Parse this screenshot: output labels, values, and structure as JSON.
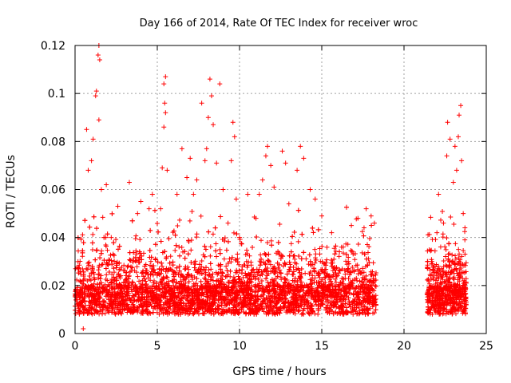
{
  "chart_data": {
    "type": "scatter",
    "title": "Day 166 of 2014, Rate Of TEC Index for receiver wroc",
    "xlabel": "GPS time / hours",
    "ylabel": "ROTI / TECUs",
    "xlim": [
      0,
      25
    ],
    "ylim": [
      0,
      0.12
    ],
    "grid": true,
    "legend": "none",
    "marker": "+",
    "color": "#ff0000",
    "x_ticks": [
      {
        "value": 0,
        "label": "0"
      },
      {
        "value": 5,
        "label": "5"
      },
      {
        "value": 10,
        "label": "10"
      },
      {
        "value": 15,
        "label": "15"
      },
      {
        "value": 20,
        "label": "20"
      },
      {
        "value": 25,
        "label": "25"
      }
    ],
    "y_ticks": [
      {
        "value": 0,
        "label": "0"
      },
      {
        "value": 0.02,
        "label": "0.02"
      },
      {
        "value": 0.04,
        "label": "0.04"
      },
      {
        "value": 0.06,
        "label": "0.06"
      },
      {
        "value": 0.08,
        "label": "0.08"
      },
      {
        "value": 0.1,
        "label": "0.1"
      },
      {
        "value": 0.12,
        "label": "0.12"
      }
    ],
    "series": [
      {
        "name": "ROTI",
        "coverage": [
          [
            0,
            18.3
          ],
          [
            21.4,
            23.8
          ]
        ],
        "points": [
          [
            0.3,
            0.022
          ],
          [
            0.5,
            0.002
          ],
          [
            0.7,
            0.085
          ],
          [
            0.8,
            0.068
          ],
          [
            1.0,
            0.072
          ],
          [
            1.1,
            0.081
          ],
          [
            1.25,
            0.099
          ],
          [
            1.3,
            0.101
          ],
          [
            1.4,
            0.116
          ],
          [
            1.45,
            0.12
          ],
          [
            1.5,
            0.114
          ],
          [
            1.45,
            0.089
          ],
          [
            1.6,
            0.06
          ],
          [
            1.9,
            0.062
          ],
          [
            2.2,
            0.04
          ],
          [
            2.6,
            0.053
          ],
          [
            3.3,
            0.063
          ],
          [
            3.8,
            0.05
          ],
          [
            4.0,
            0.055
          ],
          [
            4.5,
            0.052
          ],
          [
            4.7,
            0.058
          ],
          [
            5.2,
            0.052
          ],
          [
            5.3,
            0.069
          ],
          [
            5.4,
            0.104
          ],
          [
            5.5,
            0.107
          ],
          [
            5.45,
            0.096
          ],
          [
            5.4,
            0.086
          ],
          [
            5.5,
            0.092
          ],
          [
            5.6,
            0.068
          ],
          [
            6.2,
            0.058
          ],
          [
            6.5,
            0.077
          ],
          [
            6.8,
            0.065
          ],
          [
            7.0,
            0.073
          ],
          [
            7.2,
            0.058
          ],
          [
            7.4,
            0.064
          ],
          [
            7.7,
            0.096
          ],
          [
            7.9,
            0.072
          ],
          [
            8.0,
            0.077
          ],
          [
            8.1,
            0.09
          ],
          [
            8.2,
            0.106
          ],
          [
            8.3,
            0.099
          ],
          [
            8.4,
            0.087
          ],
          [
            8.6,
            0.071
          ],
          [
            8.8,
            0.104
          ],
          [
            9.0,
            0.06
          ],
          [
            9.3,
            0.046
          ],
          [
            9.5,
            0.072
          ],
          [
            9.6,
            0.088
          ],
          [
            9.7,
            0.082
          ],
          [
            9.8,
            0.056
          ],
          [
            10.0,
            0.04
          ],
          [
            10.5,
            0.058
          ],
          [
            11.0,
            0.048
          ],
          [
            11.2,
            0.058
          ],
          [
            11.4,
            0.064
          ],
          [
            11.6,
            0.074
          ],
          [
            11.7,
            0.078
          ],
          [
            11.9,
            0.07
          ],
          [
            12.1,
            0.061
          ],
          [
            12.6,
            0.076
          ],
          [
            12.8,
            0.071
          ],
          [
            13.0,
            0.054
          ],
          [
            13.5,
            0.068
          ],
          [
            13.7,
            0.078
          ],
          [
            13.9,
            0.073
          ],
          [
            14.3,
            0.06
          ],
          [
            14.6,
            0.056
          ],
          [
            15.0,
            0.049
          ],
          [
            15.6,
            0.042
          ],
          [
            16.2,
            0.036
          ],
          [
            16.8,
            0.045
          ],
          [
            17.2,
            0.048
          ],
          [
            17.7,
            0.052
          ],
          [
            18.0,
            0.049
          ],
          [
            18.2,
            0.046
          ],
          [
            21.7,
            0.03
          ],
          [
            22.0,
            0.042
          ],
          [
            22.1,
            0.058
          ],
          [
            22.4,
            0.046
          ],
          [
            22.6,
            0.074
          ],
          [
            22.65,
            0.088
          ],
          [
            22.8,
            0.081
          ],
          [
            23.0,
            0.063
          ],
          [
            23.1,
            0.078
          ],
          [
            23.2,
            0.068
          ],
          [
            23.3,
            0.082
          ],
          [
            23.35,
            0.091
          ],
          [
            23.45,
            0.095
          ],
          [
            23.5,
            0.072
          ],
          [
            23.6,
            0.05
          ],
          [
            23.7,
            0.039
          ]
        ]
      }
    ]
  }
}
